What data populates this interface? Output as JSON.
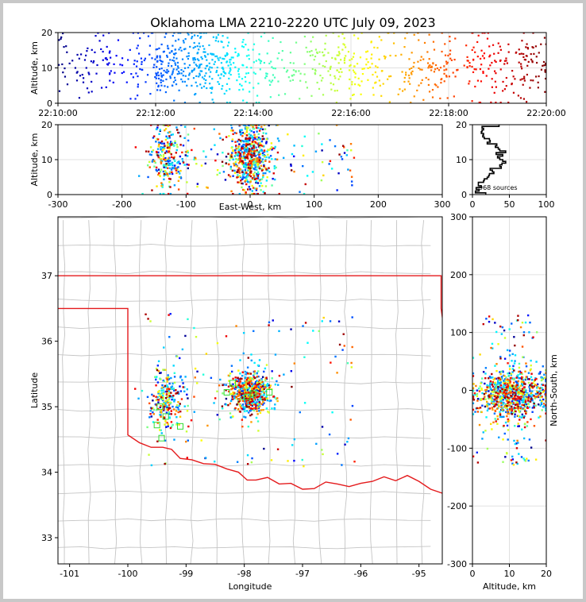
{
  "title": "Oklahoma LMA 2210-2220 UTC July 09, 2023",
  "chart_data": [
    {
      "id": "time-altitude",
      "type": "scatter",
      "ylabel": "Altitude, km",
      "xlim_minutes": [
        0,
        10
      ],
      "ylim": [
        0,
        20
      ],
      "x_ticks": [
        "22:10:00",
        "22:12:00",
        "22:14:00",
        "22:16:00",
        "22:18:00",
        "22:20:00"
      ],
      "y_ticks": [
        0,
        10,
        20
      ],
      "color_scale": "time (blue to red)"
    },
    {
      "id": "ew-altitude",
      "type": "scatter",
      "xlabel": "East-West, km",
      "ylabel": "Altitude, km",
      "xlim": [
        -300,
        300
      ],
      "ylim": [
        0,
        20
      ],
      "x_ticks": [
        -300,
        -200,
        -100,
        0,
        100,
        200,
        300
      ],
      "y_ticks": [
        0,
        10,
        20
      ]
    },
    {
      "id": "altitude-histogram",
      "type": "line",
      "xlim": [
        0,
        100
      ],
      "ylim": [
        0,
        20
      ],
      "x_ticks": [
        0,
        50,
        100
      ],
      "y_ticks": [
        0,
        10,
        20
      ],
      "annotation": "968 sources"
    },
    {
      "id": "plan-view",
      "type": "scatter",
      "xlabel": "Longitude",
      "ylabel": "Latitude",
      "xlim": [
        -101.2,
        -94.6
      ],
      "ylim": [
        32.6,
        37.9
      ],
      "x_ticks": [
        -101,
        -100,
        -99,
        -98,
        -97,
        -96,
        -95
      ],
      "y_ticks": [
        33,
        34,
        35,
        36,
        37
      ],
      "stations_label": "LMA stations (green squares)",
      "stations": [
        [
          -99.45,
          35.0
        ],
        [
          -99.35,
          34.85
        ],
        [
          -99.5,
          34.72
        ],
        [
          -99.42,
          34.52
        ],
        [
          -99.1,
          34.7
        ],
        [
          -98.3,
          35.22
        ],
        [
          -97.85,
          35.2
        ],
        [
          -97.57,
          35.22
        ],
        [
          -98.2,
          35.36
        ],
        [
          -97.95,
          35.15
        ]
      ]
    },
    {
      "id": "altitude-ns",
      "type": "scatter",
      "xlabel": "Altitude, km",
      "ylabel": "North-South, km",
      "xlim": [
        0,
        20
      ],
      "ylim": [
        -300,
        300
      ],
      "x_ticks": [
        0,
        10,
        20
      ],
      "y_ticks": [
        -300,
        -200,
        -100,
        0,
        100,
        200,
        300
      ]
    }
  ]
}
